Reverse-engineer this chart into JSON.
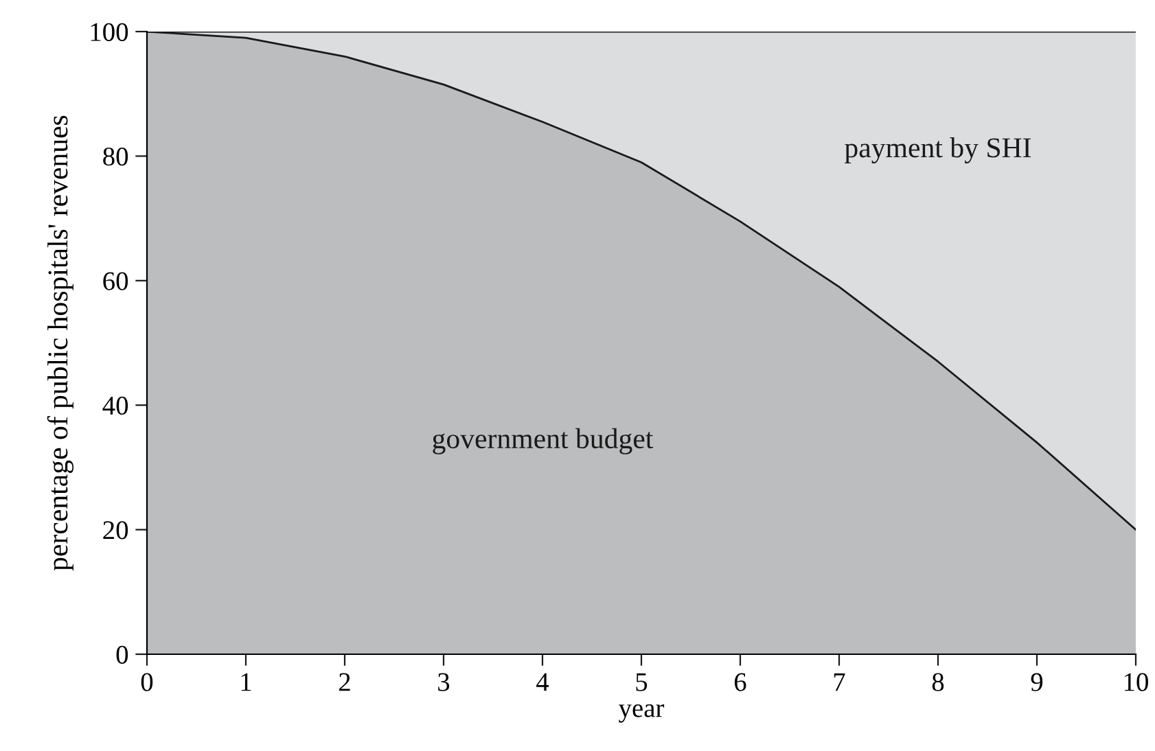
{
  "chart_data": {
    "type": "area",
    "stacked": true,
    "xlabel": "year",
    "ylabel": "percentage of public hospitals' revenues",
    "x": [
      0,
      1,
      2,
      3,
      4,
      5,
      6,
      7,
      8,
      9,
      10
    ],
    "series": [
      {
        "name": "government budget",
        "color": "#bcbdbf",
        "values": [
          100,
          99,
          96,
          91.5,
          85.5,
          79,
          69.5,
          59,
          47,
          34,
          20
        ]
      },
      {
        "name": "payment by SHI",
        "color": "#dcdddf",
        "values": [
          0,
          1,
          4,
          8.5,
          14.5,
          21,
          30.5,
          41,
          53,
          66,
          80
        ]
      }
    ],
    "xlim": [
      0,
      10
    ],
    "ylim": [
      0,
      100
    ],
    "xticks": [
      0,
      1,
      2,
      3,
      4,
      5,
      6,
      7,
      8,
      9,
      10
    ],
    "yticks": [
      0,
      20,
      40,
      60,
      80,
      100
    ],
    "grid": false,
    "legend": false
  }
}
